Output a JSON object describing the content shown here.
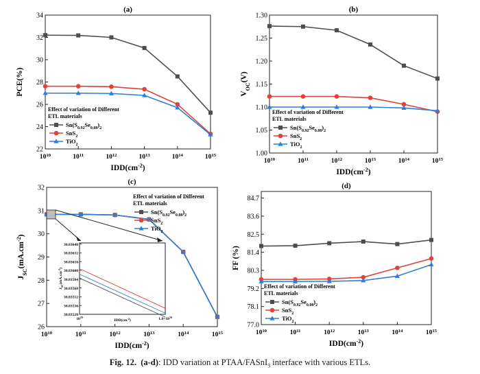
{
  "colors": {
    "sn": "#4d4d4d",
    "sns2": "#e0413b",
    "tio2": "#2b7fd8",
    "frame": "#222222",
    "inset_box": "#bdbdbd"
  },
  "legend_title": [
    "Effect of variation of Different",
    "ETL materials"
  ],
  "legend_labels": {
    "sn": "Sn(S0.92Se0.08)2",
    "sns2": "SnS2",
    "tio2": "TiO2"
  },
  "x_tick_labels": [
    "10^10",
    "10^11",
    "10^12",
    "10^13",
    "10^14",
    "10^15"
  ],
  "caption": {
    "label": "Fig. 12.",
    "panels": "(a-d)",
    "text": ": IDD variation at PTAA/FASnI3 interface with various ETLs."
  },
  "chart_data": [
    {
      "type": "line",
      "panel": "(a)",
      "title": "(a)",
      "xlabel": "IDD(cm-2)",
      "ylabel": "PCE(%)",
      "x_exponent": [
        10,
        11,
        12,
        13,
        14,
        15
      ],
      "ylim": [
        22,
        34
      ],
      "yticks": [
        "22",
        "24",
        "26",
        "28",
        "30",
        "32",
        "34"
      ],
      "legend": "bottom-left",
      "series": [
        {
          "name": "Sn(S0.92Se0.08)2",
          "key": "sn",
          "values": [
            32.2,
            32.18,
            32.0,
            31.05,
            28.5,
            25.25
          ]
        },
        {
          "name": "SnS2",
          "key": "sns2",
          "values": [
            27.62,
            27.62,
            27.58,
            27.35,
            26.0,
            23.35
          ]
        },
        {
          "name": "TiO2",
          "key": "tio2",
          "values": [
            27.0,
            27.0,
            26.97,
            26.8,
            25.7,
            23.28
          ]
        }
      ]
    },
    {
      "type": "line",
      "panel": "(b)",
      "title": "(b)",
      "xlabel": "IDD(cm-2)",
      "ylabel": "VOC(V)",
      "x_exponent": [
        10,
        11,
        12,
        13,
        14,
        15
      ],
      "ylim": [
        1.0,
        1.3
      ],
      "yticks": [
        "1.00",
        "1.05",
        "1.10",
        "1.15",
        "1.20",
        "1.25",
        "1.30"
      ],
      "legend": "bottom-left",
      "series": [
        {
          "name": "Sn(S0.92Se0.08)2",
          "key": "sn",
          "values": [
            1.276,
            1.275,
            1.267,
            1.236,
            1.19,
            1.162
          ]
        },
        {
          "name": "SnS2",
          "key": "sns2",
          "values": [
            1.123,
            1.123,
            1.123,
            1.12,
            1.106,
            1.09
          ]
        },
        {
          "name": "TiO2",
          "key": "tio2",
          "values": [
            1.1,
            1.1,
            1.1,
            1.1,
            1.098,
            1.092
          ]
        }
      ]
    },
    {
      "type": "line",
      "panel": "(c)",
      "title": "(c)",
      "xlabel": "IDD(cm-2)",
      "ylabel": "JSC(mA.cm-2)",
      "x_exponent": [
        10,
        11,
        12,
        13,
        14,
        15
      ],
      "ylim": [
        26,
        32
      ],
      "yticks": [
        "26",
        "27",
        "28",
        "29",
        "30",
        "31",
        "32"
      ],
      "legend": "top-right",
      "series": [
        {
          "name": "Sn(S0.92Se0.08)2",
          "key": "sn",
          "values": [
            30.836,
            30.836,
            30.81,
            30.62,
            29.22,
            26.42
          ]
        },
        {
          "name": "SnS2",
          "key": "sns2",
          "values": [
            30.836,
            30.836,
            30.81,
            30.62,
            29.22,
            26.42
          ]
        },
        {
          "name": "TiO2",
          "key": "tio2",
          "values": [
            30.836,
            30.836,
            30.81,
            30.62,
            29.22,
            26.42
          ]
        }
      ],
      "inset": {
        "x_tick_labels": [
          "10^10",
          "1.8×10^10"
        ],
        "xlabel": "IDD(cm-2)",
        "ylabel": "JSC(mA.cm-2)",
        "ylim": [
          30.8352,
          30.8365
        ],
        "yticks": [
          "30.83520",
          "30.83536",
          "30.83552",
          "30.83568",
          "30.83584",
          "30.83600",
          "30.83616",
          "30.83632",
          "30.83648"
        ],
        "series": [
          {
            "key": "sns2",
            "values": [
              30.83603,
              30.83531
            ]
          },
          {
            "key": "tio2",
            "values": [
              30.83593,
              30.83522
            ]
          },
          {
            "key": "sn",
            "values": [
              30.83586,
              30.83515
            ]
          }
        ]
      }
    },
    {
      "type": "line",
      "panel": "(d)",
      "title": "(d)",
      "xlabel": "IDD(cm-2)",
      "ylabel": "FF (%)",
      "x_exponent": [
        10,
        11,
        12,
        13,
        14,
        15
      ],
      "ylim": [
        77.0,
        85.1
      ],
      "yticks": [
        "77.0",
        "78.1",
        "79.2",
        "80.3",
        "81.4",
        "82.5",
        "83.6",
        "84.7"
      ],
      "legend": "bottom-left",
      "series": [
        {
          "name": "Sn(S0.92Se0.08)2",
          "key": "sn",
          "values": [
            81.78,
            81.8,
            81.95,
            82.05,
            81.9,
            82.15
          ]
        },
        {
          "name": "SnS2",
          "key": "sns2",
          "values": [
            79.75,
            79.75,
            79.78,
            79.88,
            80.45,
            81.02
          ]
        },
        {
          "name": "TiO2",
          "key": "tio2",
          "values": [
            79.62,
            79.62,
            79.63,
            79.68,
            79.95,
            80.65
          ]
        }
      ]
    }
  ]
}
